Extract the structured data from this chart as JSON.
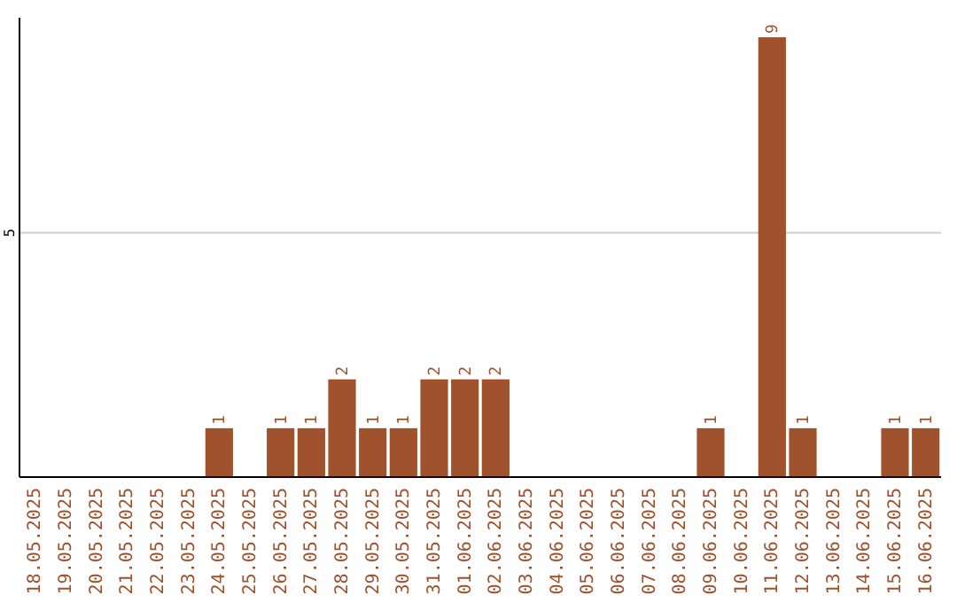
{
  "chart_data": {
    "type": "bar",
    "categories": [
      "18.05.2025",
      "19.05.2025",
      "20.05.2025",
      "21.05.2025",
      "22.05.2025",
      "23.05.2025",
      "24.05.2025",
      "25.05.2025",
      "26.05.2025",
      "27.05.2025",
      "28.05.2025",
      "29.05.2025",
      "30.05.2025",
      "31.05.2025",
      "01.06.2025",
      "02.06.2025",
      "03.06.2025",
      "04.06.2025",
      "05.06.2025",
      "06.06.2025",
      "07.06.2025",
      "08.06.2025",
      "09.06.2025",
      "10.06.2025",
      "11.06.2025",
      "12.06.2025",
      "13.06.2025",
      "14.06.2025",
      "15.06.2025",
      "16.06.2025"
    ],
    "values": [
      null,
      null,
      null,
      null,
      null,
      null,
      1,
      null,
      1,
      1,
      2,
      1,
      1,
      2,
      2,
      2,
      null,
      null,
      null,
      null,
      null,
      null,
      1,
      null,
      9,
      1,
      null,
      null,
      1,
      1
    ],
    "color": "#a0522d",
    "ylim": [
      0,
      9.4
    ],
    "yticks": [
      5
    ],
    "grid": "y",
    "data_labels": true
  }
}
